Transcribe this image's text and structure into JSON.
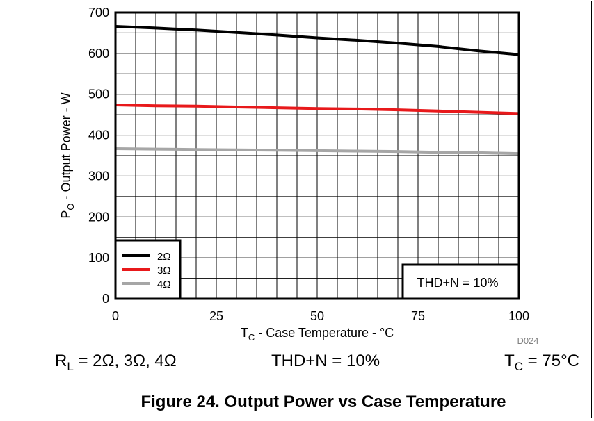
{
  "chart_data": {
    "type": "line",
    "x": [
      0,
      10,
      20,
      30,
      40,
      50,
      60,
      70,
      80,
      90,
      100
    ],
    "series": [
      {
        "name": "2Ω",
        "color": "#000000",
        "values": [
          666,
          662,
          657,
          651,
          645,
          638,
          632,
          625,
          617,
          606,
          597
        ]
      },
      {
        "name": "3Ω",
        "color": "#e8191b",
        "values": [
          474,
          472,
          471,
          469,
          467,
          465,
          464,
          462,
          459,
          456,
          453
        ]
      },
      {
        "name": "4Ω",
        "color": "#a6a6a6",
        "values": [
          367,
          366,
          365,
          364,
          363,
          362,
          361,
          360,
          358,
          357,
          355
        ]
      }
    ],
    "xlim": [
      0,
      100
    ],
    "ylim": [
      0,
      700
    ],
    "xticks": [
      "0",
      "25",
      "50",
      "75",
      "100"
    ],
    "yticks": [
      "0",
      "100",
      "200",
      "300",
      "400",
      "500",
      "600",
      "700"
    ],
    "xlabel_main": "T",
    "xlabel_sub": "C",
    "xlabel_rest": " - Case Temperature - °C",
    "ylabel_main": "P",
    "ylabel_sub": "O",
    "ylabel_rest": " - Output Power - W",
    "grid": true,
    "legend_position": "bottom-left",
    "annotation": "THD+N = 10%",
    "code": "D024"
  },
  "conditions": {
    "rl_main": "R",
    "rl_sub": "L",
    "rl_rest": " = 2Ω, 3Ω, 4Ω",
    "thd": "THD+N = 10%",
    "tc_main": "T",
    "tc_sub": "C",
    "tc_rest": " = 75°C"
  },
  "figure_title": "Figure 24. Output Power vs Case Temperature"
}
